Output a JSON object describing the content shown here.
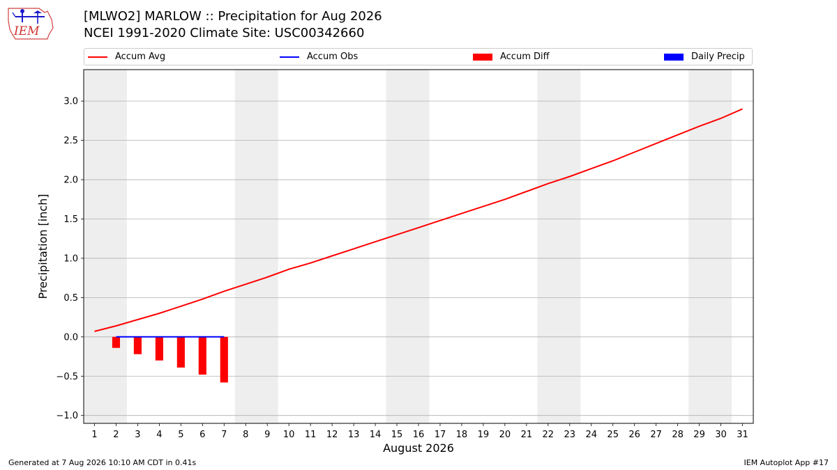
{
  "header": {
    "title_line1": "[MLWO2] MARLOW :: Precipitation for Aug 2026",
    "title_line2": "NCEI 1991-2020 Climate Site: USC00342660",
    "logo_text": "IEM"
  },
  "colors": {
    "accum_avg": "#ff0000",
    "accum_obs": "#0000ff",
    "accum_diff": "#ff0000",
    "daily_precip": "#0000ff",
    "weekend_shade": "#eeeeee",
    "grid": "#b0b0b0"
  },
  "legend": [
    {
      "label": "Accum Avg",
      "kind": "line",
      "color": "#ff0000"
    },
    {
      "label": "Accum Obs",
      "kind": "line",
      "color": "#0000ff"
    },
    {
      "label": "Accum Diff",
      "kind": "bar",
      "color": "#ff0000"
    },
    {
      "label": "Daily Precip",
      "kind": "bar",
      "color": "#0000ff"
    }
  ],
  "chart_data": {
    "type": "line",
    "xlabel": "August 2026",
    "ylabel": "Precipitation [inch]",
    "xlim": [
      0.5,
      31.5
    ],
    "ylim": [
      -1.1,
      3.4
    ],
    "yticks": [
      -1.0,
      -0.5,
      0.0,
      0.5,
      1.0,
      1.5,
      2.0,
      2.5,
      3.0
    ],
    "ytick_labels": [
      "−1.0",
      "−0.5",
      "0.0",
      "0.5",
      "1.0",
      "1.5",
      "2.0",
      "2.5",
      "3.0"
    ],
    "xticks": [
      1,
      2,
      3,
      4,
      5,
      6,
      7,
      8,
      9,
      10,
      11,
      12,
      13,
      14,
      15,
      16,
      17,
      18,
      19,
      20,
      21,
      22,
      23,
      24,
      25,
      26,
      27,
      28,
      29,
      30,
      31
    ],
    "grid": "horizontal",
    "legend_position": "top",
    "weekend_spans": [
      [
        0.5,
        2.5
      ],
      [
        7.5,
        9.5
      ],
      [
        14.5,
        16.5
      ],
      [
        21.5,
        23.5
      ],
      [
        28.5,
        30.5
      ]
    ],
    "series": [
      {
        "name": "Accum Avg",
        "type": "line",
        "x": [
          1,
          2,
          3,
          4,
          5,
          6,
          7,
          8,
          9,
          10,
          11,
          12,
          13,
          14,
          15,
          16,
          17,
          18,
          19,
          20,
          21,
          22,
          23,
          24,
          25,
          26,
          27,
          28,
          29,
          30,
          31
        ],
        "values": [
          0.07,
          0.14,
          0.22,
          0.3,
          0.39,
          0.48,
          0.58,
          0.67,
          0.76,
          0.86,
          0.94,
          1.03,
          1.12,
          1.21,
          1.3,
          1.39,
          1.48,
          1.57,
          1.66,
          1.75,
          1.85,
          1.95,
          2.04,
          2.14,
          2.24,
          2.35,
          2.46,
          2.57,
          2.68,
          2.78,
          2.9
        ]
      },
      {
        "name": "Accum Obs",
        "type": "line",
        "x": [
          2,
          3,
          4,
          5,
          6,
          7
        ],
        "values": [
          0,
          0,
          0,
          0,
          0,
          0
        ]
      },
      {
        "name": "Accum Diff",
        "type": "bar",
        "x": [
          2,
          3,
          4,
          5,
          6,
          7
        ],
        "values": [
          -0.14,
          -0.22,
          -0.3,
          -0.39,
          -0.48,
          -0.58
        ]
      },
      {
        "name": "Daily Precip",
        "type": "bar",
        "x": [],
        "values": []
      }
    ]
  },
  "footer": {
    "left": "Generated at 7 Aug 2026 10:10 AM CDT in 0.41s",
    "right": "IEM Autoplot App #17"
  }
}
